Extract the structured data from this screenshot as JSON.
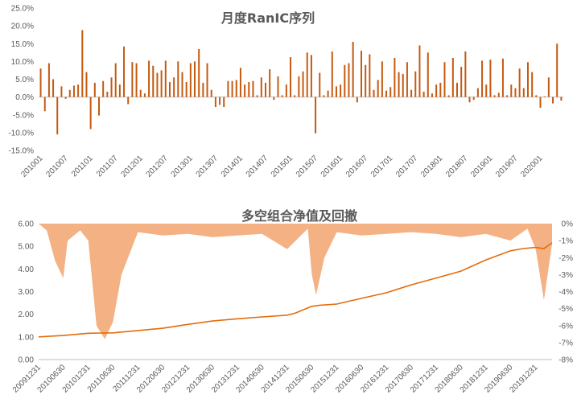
{
  "chart_data": [
    {
      "type": "bar",
      "title": "月度RanIC序列",
      "ylim": [
        -0.15,
        0.25
      ],
      "yticks": [
        "25.0%",
        "20.0%",
        "15.0%",
        "10.0%",
        "5.0%",
        "0.0%",
        "-5.0%",
        "-10.0%",
        "-15.0%"
      ],
      "xtick_labels": [
        "201001",
        "201007",
        "201101",
        "201107",
        "201201",
        "201207",
        "201301",
        "201307",
        "201401",
        "201407",
        "201501",
        "201507",
        "201601",
        "201607",
        "201701",
        "201707",
        "201801",
        "201807",
        "201901",
        "201907",
        "202001"
      ],
      "start_month": "201001",
      "bar_color": "#c55a11",
      "values": [
        0.08,
        -0.04,
        0.095,
        0.05,
        -0.105,
        0.03,
        -0.005,
        0.02,
        0.032,
        0.035,
        0.188,
        0.07,
        -0.09,
        0.04,
        -0.052,
        0.045,
        0.015,
        0.055,
        0.095,
        0.035,
        0.142,
        -0.02,
        0.098,
        0.095,
        0.02,
        0.01,
        0.102,
        0.088,
        0.068,
        0.075,
        0.102,
        0.042,
        0.055,
        0.1,
        0.07,
        0.042,
        0.095,
        0.1,
        0.135,
        0.04,
        0.095,
        0.02,
        -0.028,
        -0.022,
        -0.028,
        0.045,
        0.045,
        0.048,
        0.082,
        0.035,
        0.042,
        0.045,
        0.005,
        0.055,
        0.04,
        0.078,
        -0.008,
        0.058,
        0.005,
        0.035,
        0.112,
        0.005,
        0.058,
        0.072,
        0.125,
        0.118,
        -0.102,
        0.068,
        0.005,
        0.018,
        0.128,
        0.03,
        0.035,
        0.09,
        0.095,
        0.155,
        -0.015,
        0.13,
        0.09,
        0.12,
        0.02,
        0.048,
        0.1,
        0.018,
        0.028,
        0.11,
        0.07,
        0.065,
        0.098,
        0.02,
        0.072,
        0.145,
        0.015,
        0.125,
        0.01,
        0.035,
        0.04,
        0.098,
        0.005,
        0.11,
        0.04,
        0.085,
        0.128,
        -0.015,
        -0.008,
        0.025,
        0.102,
        0.035,
        0.105,
        0.005,
        0.012,
        0.108,
        0.005,
        0.035,
        0.025,
        0.08,
        0.025,
        0.098,
        0.07,
        0.005,
        -0.03,
        0.002,
        0.055,
        -0.018,
        0.15,
        -0.01
      ]
    },
    {
      "type": "line",
      "title": "多空组合净值及回撤",
      "y_left_ticks": [
        "6.00",
        "5.00",
        "4.00",
        "3.00",
        "2.00",
        "1.00",
        "0.00"
      ],
      "ylim": [
        0,
        6
      ],
      "y_right_ticks": [
        "0%",
        "-1%",
        "-2%",
        "-3%",
        "-4%",
        "-5%",
        "-6%",
        "-7%",
        "-8%"
      ],
      "y2lim": [
        -0.08,
        0
      ],
      "xtick_labels": [
        "20091231",
        "20100630",
        "20101231",
        "20110630",
        "20111231",
        "20120630",
        "20121231",
        "20130630",
        "20131231",
        "20140630",
        "20141231",
        "20150630",
        "20151231",
        "20160630",
        "20161231",
        "20170630",
        "20171231",
        "20180630",
        "20181231",
        "20190630",
        "20191231"
      ],
      "nav_color": "#e46c0a",
      "drawdown_color": "#f4b183",
      "series": [
        {
          "x": [
            "20091231",
            "20100630",
            "20101231",
            "20110630",
            "20111231",
            "20120630",
            "20121231",
            "20130630",
            "20131231",
            "20140630",
            "20141231",
            "20150301",
            "20150630",
            "20150901",
            "20151231",
            "20160630",
            "20161231",
            "20170630",
            "20171231",
            "20180630",
            "20181231",
            "20190630",
            "20191001",
            "20191231",
            "20200301",
            "20200430"
          ],
          "values": [
            1.0,
            1.06,
            1.16,
            1.18,
            1.28,
            1.38,
            1.55,
            1.7,
            1.8,
            1.88,
            1.96,
            2.05,
            2.35,
            2.4,
            2.45,
            2.7,
            2.95,
            3.3,
            3.6,
            3.9,
            4.4,
            4.8,
            4.9,
            4.95,
            4.9,
            5.15
          ]
        },
        {
          "x": [
            "20091231",
            "20100301",
            "20100501",
            "20100630",
            "20100801",
            "20101101",
            "20101231",
            "20110301",
            "20110501",
            "20110630",
            "20110901",
            "20111231",
            "20120630",
            "20121231",
            "20130630",
            "20131231",
            "20140630",
            "20141231",
            "20150601",
            "20150701",
            "20150801",
            "20151001",
            "20151231",
            "20160630",
            "20161231",
            "20170630",
            "20171231",
            "20180630",
            "20181231",
            "20190630",
            "20191101",
            "20200101",
            "20200301",
            "20200430"
          ],
          "values": [
            0.0,
            -0.004,
            -0.022,
            -0.032,
            -0.01,
            -0.004,
            -0.01,
            -0.06,
            -0.068,
            -0.058,
            -0.03,
            -0.005,
            -0.007,
            -0.006,
            -0.008,
            -0.007,
            -0.006,
            -0.015,
            -0.003,
            -0.03,
            -0.042,
            -0.02,
            -0.005,
            -0.007,
            -0.006,
            -0.005,
            -0.006,
            -0.008,
            -0.006,
            -0.01,
            -0.003,
            -0.015,
            -0.045,
            -0.012
          ]
        }
      ]
    }
  ]
}
